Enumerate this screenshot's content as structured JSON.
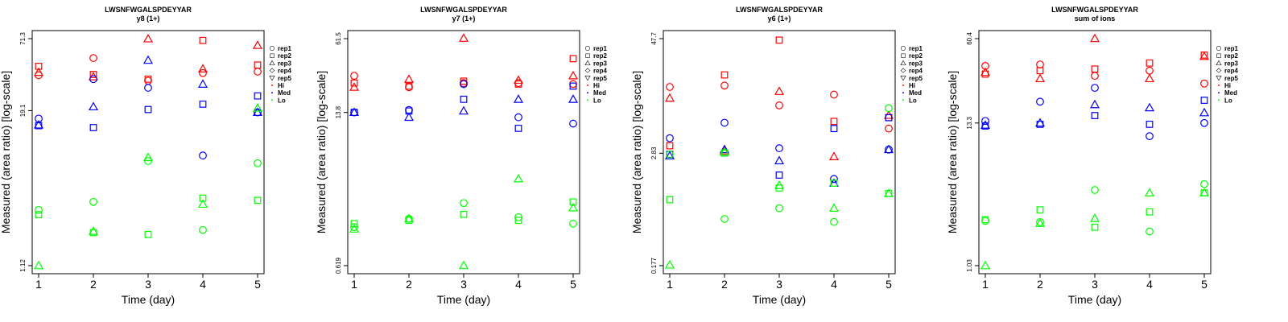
{
  "colors": {
    "Hi": "#ff0000",
    "Med": "#0000ff",
    "Lo": "#00ff00"
  },
  "legend": [
    {
      "label": "rep1",
      "shape": "circle"
    },
    {
      "label": "rep2",
      "shape": "square"
    },
    {
      "label": "rep3",
      "shape": "triangle-up"
    },
    {
      "label": "rep4",
      "shape": "diamond"
    },
    {
      "label": "rep5",
      "shape": "triangle-down"
    },
    {
      "label": "Hi",
      "shape": "dot",
      "color": "Hi"
    },
    {
      "label": "Med",
      "shape": "dot",
      "color": "Med"
    },
    {
      "label": "Lo",
      "shape": "dot",
      "color": "Lo"
    }
  ],
  "chart_data": [
    {
      "type": "scatter",
      "title": "LWSNFWGALSPDEYYAR",
      "subtitle": "y8 (1+)",
      "xlabel": "Time (day)",
      "ylabel": "Measured (area ratio) [log-scale]",
      "x_ticks": [
        1,
        2,
        3,
        4,
        5
      ],
      "y_ticks": [
        "1.12",
        "19.1",
        "71.3"
      ],
      "yscale": "log",
      "ylim": [
        1.12,
        71.3
      ],
      "series": [
        {
          "group": "Hi",
          "rep": "rep1",
          "points": [
            [
              1,
              36.5
            ],
            [
              2,
              50
            ],
            [
              3,
              33
            ],
            [
              4,
              38
            ],
            [
              5,
              39
            ]
          ]
        },
        {
          "group": "Hi",
          "rep": "rep2",
          "points": [
            [
              1,
              43
            ],
            [
              2,
              37
            ],
            [
              3,
              34
            ],
            [
              4,
              69
            ],
            [
              5,
              44
            ]
          ]
        },
        {
          "group": "Hi",
          "rep": "rep3",
          "points": [
            [
              1,
              38.5
            ],
            [
              2,
              35.5
            ],
            [
              3,
              71
            ],
            [
              4,
              41
            ],
            [
              5,
              63
            ]
          ]
        },
        {
          "group": "Med",
          "rep": "rep1",
          "points": [
            [
              1,
              16.5
            ],
            [
              2,
              34
            ],
            [
              3,
              29
            ],
            [
              4,
              8.4
            ],
            [
              5,
              18.5
            ]
          ]
        },
        {
          "group": "Med",
          "rep": "rep2",
          "points": [
            [
              1,
              14.5
            ],
            [
              2,
              14
            ],
            [
              3,
              19.5
            ],
            [
              4,
              21.5
            ],
            [
              5,
              25
            ]
          ]
        },
        {
          "group": "Med",
          "rep": "rep3",
          "points": [
            [
              1,
              14.7
            ],
            [
              2,
              20.5
            ],
            [
              3,
              48
            ],
            [
              4,
              31
            ],
            [
              5,
              18.5
            ]
          ]
        },
        {
          "group": "Lo",
          "rep": "rep1",
          "points": [
            [
              1,
              3.1
            ],
            [
              2,
              3.6
            ],
            [
              3,
              7.6
            ],
            [
              4,
              2.15
            ],
            [
              5,
              7.3
            ]
          ]
        },
        {
          "group": "Lo",
          "rep": "rep2",
          "points": [
            [
              1,
              2.85
            ],
            [
              2,
              2.05
            ],
            [
              3,
              1.98
            ],
            [
              4,
              3.85
            ],
            [
              5,
              3.7
            ]
          ]
        },
        {
          "group": "Lo",
          "rep": "rep3",
          "points": [
            [
              1,
              1.12
            ],
            [
              2,
              2.1
            ],
            [
              3,
              8.1
            ],
            [
              4,
              3.45
            ],
            [
              5,
              20
            ]
          ]
        }
      ]
    },
    {
      "type": "scatter",
      "title": "LWSNFWGALSPDEYYAR",
      "subtitle": "y7 (1+)",
      "xlabel": "Time (day)",
      "ylabel": "Measured (area ratio) [log-scale]",
      "x_ticks": [
        1,
        2,
        3,
        4,
        5
      ],
      "y_ticks": [
        "0.619",
        "13.8",
        "61.5"
      ],
      "yscale": "log",
      "ylim": [
        0.619,
        61.5
      ],
      "series": [
        {
          "group": "Hi",
          "rep": "rep1",
          "points": [
            [
              1,
              29
            ],
            [
              2,
              23
            ],
            [
              3,
              25
            ],
            [
              4,
              25
            ],
            [
              5,
              24.5
            ]
          ]
        },
        {
          "group": "Hi",
          "rep": "rep2",
          "points": [
            [
              1,
              25
            ],
            [
              2,
              23.5
            ],
            [
              3,
              26
            ],
            [
              4,
              24.5
            ],
            [
              5,
              41
            ]
          ]
        },
        {
          "group": "Hi",
          "rep": "rep3",
          "points": [
            [
              1,
              23
            ],
            [
              2,
              27
            ],
            [
              3,
              62
            ],
            [
              4,
              26.5
            ],
            [
              5,
              29
            ]
          ]
        },
        {
          "group": "Med",
          "rep": "rep1",
          "points": [
            [
              1,
              13.8
            ],
            [
              2,
              14.5
            ],
            [
              3,
              24.5
            ],
            [
              4,
              12.5
            ],
            [
              5,
              11
            ]
          ]
        },
        {
          "group": "Med",
          "rep": "rep2",
          "points": [
            [
              1,
              13.8
            ],
            [
              2,
              14.2
            ],
            [
              3,
              18
            ],
            [
              4,
              10
            ],
            [
              5,
              23.5
            ]
          ]
        },
        {
          "group": "Med",
          "rep": "rep3",
          "points": [
            [
              1,
              13.8
            ],
            [
              2,
              12.5
            ],
            [
              3,
              14.2
            ],
            [
              4,
              18
            ],
            [
              5,
              18
            ]
          ]
        },
        {
          "group": "Lo",
          "rep": "rep1",
          "points": [
            [
              1,
              1.35
            ],
            [
              2,
              1.6
            ],
            [
              3,
              2.2
            ],
            [
              4,
              1.65
            ],
            [
              5,
              1.45
            ]
          ]
        },
        {
          "group": "Lo",
          "rep": "rep2",
          "points": [
            [
              1,
              1.45
            ],
            [
              2,
              1.55
            ],
            [
              3,
              1.75
            ],
            [
              4,
              1.55
            ],
            [
              5,
              2.25
            ]
          ]
        },
        {
          "group": "Lo",
          "rep": "rep3",
          "points": [
            [
              1,
              1.3
            ],
            [
              2,
              1.6
            ],
            [
              3,
              0.62
            ],
            [
              4,
              3.6
            ],
            [
              5,
              2
            ]
          ]
        }
      ]
    },
    {
      "type": "scatter",
      "title": "LWSNFWGALSPDEYYAR",
      "subtitle": "y6 (1+)",
      "xlabel": "Time (day)",
      "ylabel": "Measured (area ratio) [log-scale]",
      "x_ticks": [
        1,
        2,
        3,
        4,
        5
      ],
      "y_ticks": [
        "0.177",
        "2.83",
        "47.7"
      ],
      "yscale": "log",
      "ylim": [
        0.177,
        47.7
      ],
      "series": [
        {
          "group": "Hi",
          "rep": "rep1",
          "points": [
            [
              1,
              14.5
            ],
            [
              2,
              15
            ],
            [
              3,
              9.2
            ],
            [
              4,
              12
            ],
            [
              5,
              5.2
            ]
          ]
        },
        {
          "group": "Hi",
          "rep": "rep2",
          "points": [
            [
              1,
              3.4
            ],
            [
              2,
              19.5
            ],
            [
              3,
              46
            ],
            [
              4,
              6.2
            ],
            [
              5,
              6.8
            ]
          ]
        },
        {
          "group": "Hi",
          "rep": "rep3",
          "points": [
            [
              1,
              11
            ],
            [
              2,
              3
            ],
            [
              3,
              13
            ],
            [
              4,
              2.6
            ],
            [
              5,
              7.2
            ]
          ]
        },
        {
          "group": "Med",
          "rep": "rep1",
          "points": [
            [
              1,
              4.1
            ],
            [
              2,
              6
            ],
            [
              3,
              3.2
            ],
            [
              4,
              1.5
            ],
            [
              5,
              3.1
            ]
          ]
        },
        {
          "group": "Med",
          "rep": "rep2",
          "points": [
            [
              1,
              2.75
            ],
            [
              2,
              2.85
            ],
            [
              3,
              1.65
            ],
            [
              4,
              5.2
            ],
            [
              5,
              6.8
            ]
          ]
        },
        {
          "group": "Med",
          "rep": "rep3",
          "points": [
            [
              1,
              2.65
            ],
            [
              2,
              3.1
            ],
            [
              3,
              2.35
            ],
            [
              4,
              1.35
            ],
            [
              5,
              3.1
            ]
          ]
        },
        {
          "group": "Lo",
          "rep": "rep1",
          "points": [
            [
              1,
              2.75
            ],
            [
              2,
              0.56
            ],
            [
              3,
              0.73
            ],
            [
              4,
              0.52
            ],
            [
              5,
              8.6
            ]
          ]
        },
        {
          "group": "Lo",
          "rep": "rep2",
          "points": [
            [
              1,
              0.9
            ],
            [
              2,
              2.85
            ],
            [
              3,
              1.2
            ],
            [
              4,
              1.35
            ],
            [
              5,
              1.05
            ]
          ]
        },
        {
          "group": "Lo",
          "rep": "rep3",
          "points": [
            [
              1,
              0.18
            ],
            [
              2,
              2.9
            ],
            [
              3,
              1.28
            ],
            [
              4,
              0.73
            ],
            [
              5,
              1.05
            ]
          ]
        }
      ]
    },
    {
      "type": "scatter",
      "title": "LWSNFWGALSPDEYYAR",
      "subtitle": "sum of ions",
      "xlabel": "Time (day)",
      "ylabel": "Measured (area ratio) [log-scale]",
      "x_ticks": [
        1,
        2,
        3,
        4,
        5
      ],
      "y_ticks": [
        "1.03",
        "13.3",
        "60.4"
      ],
      "yscale": "log",
      "ylim": [
        1.03,
        60.4
      ],
      "series": [
        {
          "group": "Hi",
          "rep": "rep1",
          "points": [
            [
              1,
              37
            ],
            [
              2,
              38
            ],
            [
              3,
              31
            ],
            [
              4,
              34
            ],
            [
              5,
              27
            ]
          ]
        },
        {
          "group": "Hi",
          "rep": "rep2",
          "points": [
            [
              1,
              32
            ],
            [
              2,
              34
            ],
            [
              3,
              35
            ],
            [
              4,
              39
            ],
            [
              5,
              45
            ]
          ]
        },
        {
          "group": "Hi",
          "rep": "rep3",
          "points": [
            [
              1,
              33
            ],
            [
              2,
              29.5
            ],
            [
              3,
              60.5
            ],
            [
              4,
              29.5
            ],
            [
              5,
              44
            ]
          ]
        },
        {
          "group": "Med",
          "rep": "rep1",
          "points": [
            [
              1,
              13.8
            ],
            [
              2,
              19.5
            ],
            [
              3,
              25
            ],
            [
              4,
              10.5
            ],
            [
              5,
              13.3
            ]
          ]
        },
        {
          "group": "Med",
          "rep": "rep2",
          "points": [
            [
              1,
              12.6
            ],
            [
              2,
              13
            ],
            [
              3,
              15.2
            ],
            [
              4,
              13
            ],
            [
              5,
              20
            ]
          ]
        },
        {
          "group": "Med",
          "rep": "rep3",
          "points": [
            [
              1,
              12.8
            ],
            [
              2,
              13.3
            ],
            [
              3,
              18.5
            ],
            [
              4,
              17.5
            ],
            [
              5,
              16
            ]
          ]
        },
        {
          "group": "Lo",
          "rep": "rep1",
          "points": [
            [
              1,
              2.3
            ],
            [
              2,
              2.25
            ],
            [
              3,
              4
            ],
            [
              4,
              1.9
            ],
            [
              5,
              4.45
            ]
          ]
        },
        {
          "group": "Lo",
          "rep": "rep2",
          "points": [
            [
              1,
              2.35
            ],
            [
              2,
              2.8
            ],
            [
              3,
              2.05
            ],
            [
              4,
              2.7
            ],
            [
              5,
              3.8
            ]
          ]
        },
        {
          "group": "Lo",
          "rep": "rep3",
          "points": [
            [
              1,
              1.03
            ],
            [
              2,
              2.2
            ],
            [
              3,
              2.4
            ],
            [
              4,
              3.8
            ],
            [
              5,
              3.8
            ]
          ]
        }
      ]
    }
  ]
}
